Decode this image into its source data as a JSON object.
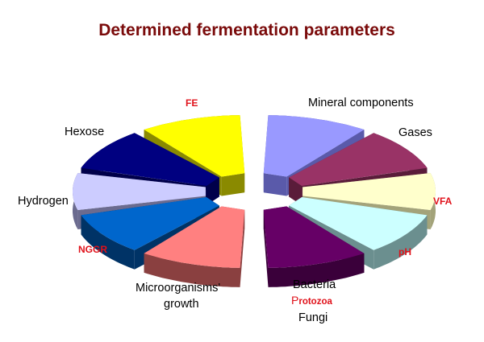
{
  "title": "Determined fermentation parameters",
  "slices": [
    {
      "id": "mineral",
      "side": "right",
      "top_color": "#9999ff",
      "side_color": "#5a5aaa"
    },
    {
      "id": "gases",
      "side": "right",
      "top_color": "#993366",
      "side_color": "#5a1c3a"
    },
    {
      "id": "vfa",
      "side": "right",
      "top_color": "#ffffcc",
      "side_color": "#a3a37a"
    },
    {
      "id": "ph",
      "side": "right",
      "top_color": "#ccffff",
      "side_color": "#6b8f8f"
    },
    {
      "id": "bacteria",
      "side": "right",
      "top_color": "#660066",
      "side_color": "#3a003a"
    },
    {
      "id": "microorg",
      "side": "left",
      "top_color": "#ff8080",
      "side_color": "#8a4040"
    },
    {
      "id": "nggr",
      "side": "left",
      "top_color": "#0066cc",
      "side_color": "#003366"
    },
    {
      "id": "hydrogen",
      "side": "left",
      "top_color": "#ccccff",
      "side_color": "#6b6b8f"
    },
    {
      "id": "hexose",
      "side": "left",
      "top_color": "#000080",
      "side_color": "#00004a"
    },
    {
      "id": "fe",
      "side": "left",
      "top_color": "#ffff00",
      "side_color": "#8a8a00"
    }
  ],
  "labels": {
    "mineral": "Mineral components",
    "gases": "Gases",
    "vfa": "VFA",
    "ph": "pH",
    "bacteria": "Bacteria",
    "protozoa_p": "P",
    "protozoa_rest": "rotozoa",
    "fungi": "Fungi",
    "microorg_1": "Microorganisms'",
    "microorg_2": "growth",
    "nggr": "NGGR",
    "hydrogen": "Hydrogen",
    "hexose": "Hexose",
    "fe": "FE"
  }
}
